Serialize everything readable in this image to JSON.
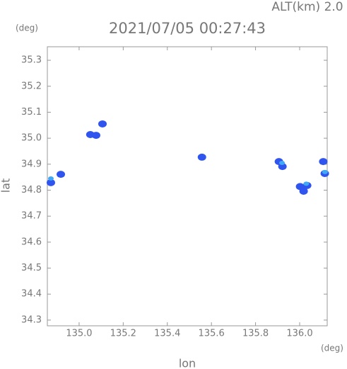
{
  "chart_data": {
    "type": "scatter",
    "header": "ALT(km) 2.0",
    "title": "2021/07/05 00:27:43",
    "y_unit": "(deg)",
    "x_unit": "(deg)",
    "xlabel": "lon",
    "ylabel": "lat",
    "xlim": [
      134.856,
      136.125
    ],
    "ylim": [
      34.278,
      35.352
    ],
    "xticks": [
      {
        "value": 135,
        "label": "135.0"
      },
      135.2,
      135.4,
      135.6,
      135.8,
      {
        "value": 136,
        "label": "136.0"
      }
    ],
    "yticks": [
      34.3,
      34.4,
      34.5,
      34.6,
      34.7,
      34.8,
      34.9,
      {
        "value": 35,
        "label": "35.0"
      },
      35.1,
      35.2,
      35.3
    ],
    "series": [
      {
        "color": "#2f55ee",
        "x": [
          134.872,
          134.917,
          135.051,
          135.077,
          135.106,
          135.557,
          135.906,
          135.922,
          136.034,
          136.002,
          136.018,
          136.107,
          136.114
        ],
        "y": [
          34.829,
          34.861,
          35.014,
          35.011,
          35.055,
          34.927,
          34.91,
          34.891,
          34.818,
          34.814,
          34.796,
          34.91,
          34.864
        ]
      },
      {
        "color": "#3fa9f5",
        "x": [
          134.872,
          135.92,
          136.03,
          136.115
        ],
        "y": [
          34.845,
          34.905,
          34.825,
          34.87
        ]
      }
    ]
  }
}
